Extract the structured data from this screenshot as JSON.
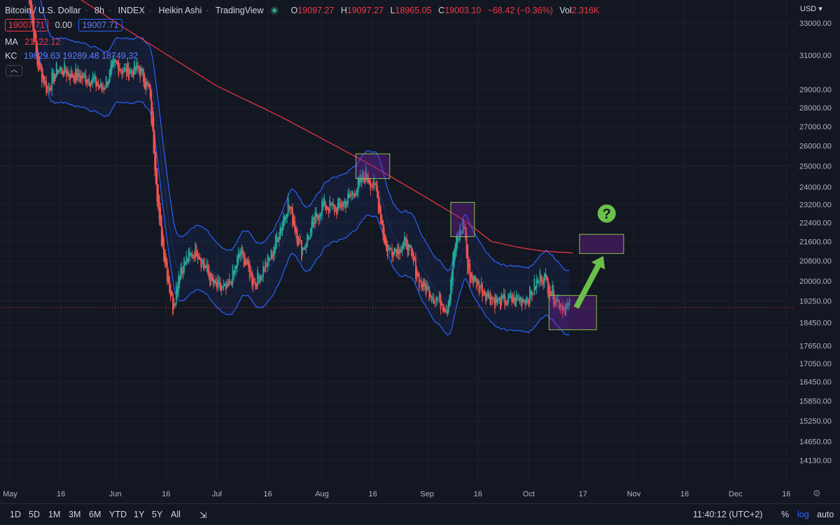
{
  "header": {
    "symbol": "Bitcoin / U.S. Dollar",
    "interval": "8h",
    "exchange": "INDEX",
    "chart_style": "Heikin Ashi",
    "source": "TradingView",
    "ohlc": {
      "o_label": "O",
      "o": "19097.27",
      "h_label": "H",
      "h": "19097.27",
      "l_label": "L",
      "l": "18965.05",
      "c_label": "C",
      "c": "19003.10",
      "change": "−68.42 (−0.36%)",
      "vol_label": "Vol",
      "vol": "2.316K"
    },
    "bid": "19007.71",
    "spread": "0.00",
    "ask": "19007.71"
  },
  "indicators": {
    "ma": {
      "label": "MA",
      "value": "21122.12"
    },
    "kc": {
      "label": "KC",
      "upper": "19829.63",
      "middle": "19289.48",
      "lower": "18749.32"
    }
  },
  "currency": "USD",
  "bottom_bar": {
    "timeframes": [
      "1D",
      "5D",
      "1M",
      "3M",
      "6M",
      "YTD",
      "1Y",
      "5Y",
      "All"
    ],
    "time": "11:40:12 (UTC+2)",
    "percent": "%",
    "log": "log",
    "auto": "auto"
  },
  "chart_data": {
    "type": "candlestick",
    "y_scale": "log",
    "ylim": [
      13500,
      34500
    ],
    "y_ticks": [
      {
        "v": 33000,
        "label": "33000.00"
      },
      {
        "v": 31000,
        "label": "31000.00"
      },
      {
        "v": 29000,
        "label": "29000.00"
      },
      {
        "v": 28000,
        "label": "28000.00"
      },
      {
        "v": 27000,
        "label": "27000.00"
      },
      {
        "v": 26000,
        "label": "26000.00"
      },
      {
        "v": 25000,
        "label": "25000.00"
      },
      {
        "v": 24000,
        "label": "24000.00"
      },
      {
        "v": 23200,
        "label": "23200.00"
      },
      {
        "v": 22400,
        "label": "22400.00"
      },
      {
        "v": 21600,
        "label": "21600.00"
      },
      {
        "v": 20800,
        "label": "20800.00"
      },
      {
        "v": 20000,
        "label": "20000.00"
      },
      {
        "v": 19250,
        "label": "19250.00"
      },
      {
        "v": 18450,
        "label": "18450.00"
      },
      {
        "v": 17650,
        "label": "17650.00"
      },
      {
        "v": 17050,
        "label": "17050.00"
      },
      {
        "v": 16450,
        "label": "16450.00"
      },
      {
        "v": 15850,
        "label": "15850.00"
      },
      {
        "v": 15250,
        "label": "15250.00"
      },
      {
        "v": 14650,
        "label": "14650.00"
      },
      {
        "v": 14130,
        "label": "14130.00"
      }
    ],
    "x_range": [
      "2022-04-28",
      "2022-12-18"
    ],
    "x_ticks": [
      {
        "d": "2022-05-01",
        "label": "May"
      },
      {
        "d": "2022-05-16",
        "label": "16"
      },
      {
        "d": "2022-06-01",
        "label": "Jun"
      },
      {
        "d": "2022-06-16",
        "label": "16"
      },
      {
        "d": "2022-07-01",
        "label": "Jul"
      },
      {
        "d": "2022-07-16",
        "label": "16"
      },
      {
        "d": "2022-08-01",
        "label": "Aug"
      },
      {
        "d": "2022-08-16",
        "label": "16"
      },
      {
        "d": "2022-09-01",
        "label": "Sep"
      },
      {
        "d": "2022-09-16",
        "label": "16"
      },
      {
        "d": "2022-10-01",
        "label": "Oct"
      },
      {
        "d": "2022-10-17",
        "label": "17"
      },
      {
        "d": "2022-11-01",
        "label": "Nov"
      },
      {
        "d": "2022-11-16",
        "label": "16"
      },
      {
        "d": "2022-12-01",
        "label": "Dec"
      },
      {
        "d": "2022-12-16",
        "label": "16"
      }
    ],
    "last_price": 19003.1,
    "price_path": [
      [
        "2022-05-06",
        36000
      ],
      [
        "2022-05-09",
        30500
      ],
      [
        "2022-05-12",
        29000
      ],
      [
        "2022-05-15",
        30200
      ],
      [
        "2022-05-20",
        29800
      ],
      [
        "2022-05-25",
        29600
      ],
      [
        "2022-05-28",
        29000
      ],
      [
        "2022-06-01",
        30500
      ],
      [
        "2022-06-04",
        30000
      ],
      [
        "2022-06-08",
        30200
      ],
      [
        "2022-06-11",
        29000
      ],
      [
        "2022-06-13",
        24500
      ],
      [
        "2022-06-14",
        22300
      ],
      [
        "2022-06-18",
        19000
      ],
      [
        "2022-06-20",
        20500
      ],
      [
        "2022-06-25",
        21300
      ],
      [
        "2022-06-30",
        19800
      ],
      [
        "2022-07-04",
        19600
      ],
      [
        "2022-07-08",
        21200
      ],
      [
        "2022-07-12",
        19900
      ],
      [
        "2022-07-17",
        21000
      ],
      [
        "2022-07-22",
        23300
      ],
      [
        "2022-07-26",
        21200
      ],
      [
        "2022-08-01",
        23200
      ],
      [
        "2022-08-05",
        23000
      ],
      [
        "2022-08-09",
        23500
      ],
      [
        "2022-08-14",
        24600
      ],
      [
        "2022-08-17",
        23800
      ],
      [
        "2022-08-20",
        21200
      ],
      [
        "2022-08-26",
        21500
      ],
      [
        "2022-08-30",
        19900
      ],
      [
        "2022-09-07",
        19000
      ],
      [
        "2022-09-09",
        21300
      ],
      [
        "2022-09-12",
        22400
      ],
      [
        "2022-09-13",
        20300
      ],
      [
        "2022-09-18",
        19600
      ],
      [
        "2022-09-22",
        19200
      ],
      [
        "2022-09-28",
        19300
      ],
      [
        "2022-10-01",
        19400
      ],
      [
        "2022-10-05",
        20300
      ],
      [
        "2022-10-08",
        19500
      ],
      [
        "2022-10-11",
        19050
      ],
      [
        "2022-10-13",
        19003
      ]
    ],
    "series": [
      {
        "name": "MA",
        "color": "#f23645",
        "points": [
          [
            "2022-05-20",
            34800
          ],
          [
            "2022-06-05",
            32500
          ],
          [
            "2022-07-01",
            29200
          ],
          [
            "2022-07-20",
            27500
          ],
          [
            "2022-08-05",
            26000
          ],
          [
            "2022-08-16",
            25000
          ],
          [
            "2022-09-01",
            23500
          ],
          [
            "2022-09-12",
            22500
          ],
          [
            "2022-09-20",
            21600
          ],
          [
            "2022-09-28",
            21350
          ],
          [
            "2022-10-05",
            21200
          ],
          [
            "2022-10-14",
            21122
          ]
        ]
      },
      {
        "name": "KC",
        "color": "#2962ff",
        "band": true
      }
    ],
    "annotations": [
      {
        "type": "box",
        "d0": "2022-08-11",
        "d1": "2022-08-21",
        "v0": 24400,
        "v1": 25600
      },
      {
        "type": "box",
        "d0": "2022-09-08",
        "d1": "2022-09-15",
        "v0": 21800,
        "v1": 23300
      },
      {
        "type": "box",
        "d0": "2022-10-07",
        "d1": "2022-10-21",
        "v0": 18200,
        "v1": 19450
      },
      {
        "type": "box",
        "d0": "2022-10-16",
        "d1": "2022-10-29",
        "v0": 21100,
        "v1": 21900
      },
      {
        "type": "arrow",
        "d0": "2022-10-15",
        "v0": 19000,
        "d1": "2022-10-23",
        "v1": 21000
      },
      {
        "type": "question",
        "d": "2022-10-24",
        "v": 22800,
        "text": "?"
      }
    ]
  }
}
